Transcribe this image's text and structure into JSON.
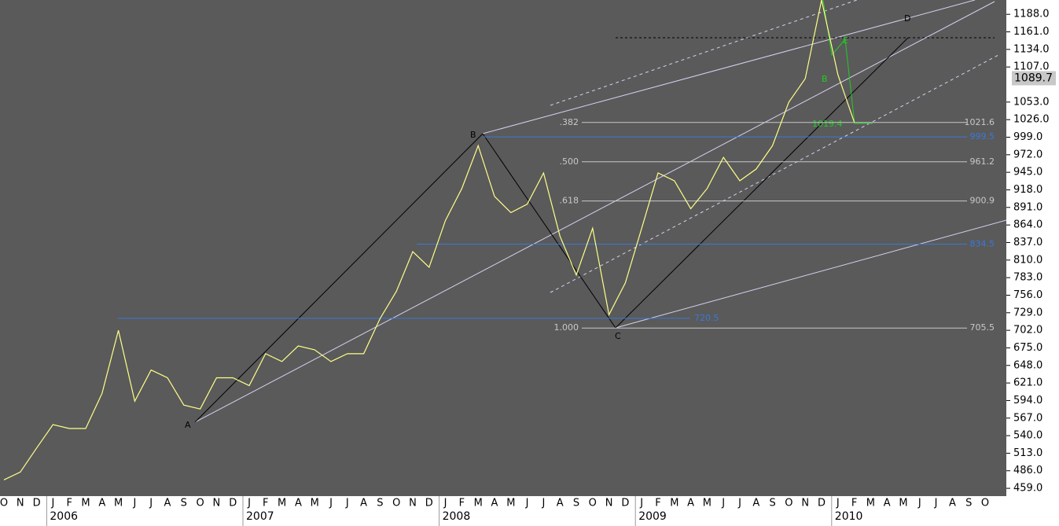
{
  "chart_data": {
    "type": "line",
    "categories": [
      "O",
      "N",
      "D",
      "J",
      "F",
      "M",
      "A",
      "M",
      "J",
      "J",
      "A",
      "S",
      "O",
      "N",
      "D",
      "J",
      "F",
      "M",
      "A",
      "M",
      "J",
      "J",
      "A",
      "S",
      "O",
      "N",
      "D",
      "J",
      "F",
      "M",
      "A",
      "M",
      "J",
      "J",
      "A",
      "S",
      "O",
      "N",
      "D",
      "J",
      "F",
      "M",
      "A",
      "M",
      "J",
      "J",
      "A",
      "S",
      "O",
      "N",
      "D",
      "J",
      "F",
      "M",
      "A",
      "M",
      "J",
      "J",
      "A",
      "S",
      "O"
    ],
    "years": [
      "2006",
      "2007",
      "2008",
      "2009",
      "2010"
    ],
    "series": [
      {
        "color": "#ffff88",
        "values": [
          472,
          484,
          521,
          557,
          551,
          551,
          605,
          702,
          593,
          641,
          629,
          587,
          581,
          629,
          629,
          617,
          666,
          654,
          678,
          672,
          654,
          666,
          666,
          720,
          762,
          823,
          799,
          871,
          920,
          986,
          908,
          883,
          896,
          944,
          847,
          787,
          859,
          726,
          775,
          859,
          944,
          932,
          889,
          920,
          968,
          932,
          950,
          986,
          1053,
          1089,
          1210,
          1095,
          1022,
          null,
          null,
          null,
          null,
          null,
          null,
          null,
          null
        ]
      }
    ],
    "ylim": [
      447,
      1210
    ],
    "yticks": [
      {
        "value": 459,
        "label": "459.0"
      },
      {
        "value": 486,
        "label": "486.0"
      },
      {
        "value": 513,
        "label": "513.0"
      },
      {
        "value": 540,
        "label": "540.0"
      },
      {
        "value": 567,
        "label": "567.0"
      },
      {
        "value": 594,
        "label": "594.0"
      },
      {
        "value": 621,
        "label": "621.0"
      },
      {
        "value": 648,
        "label": "648.0"
      },
      {
        "value": 675,
        "label": "675.0"
      },
      {
        "value": 702,
        "label": "702.0"
      },
      {
        "value": 729,
        "label": "729.0"
      },
      {
        "value": 756,
        "label": "756.0"
      },
      {
        "value": 783,
        "label": "783.0"
      },
      {
        "value": 810,
        "label": "810.0"
      },
      {
        "value": 837,
        "label": "837.0"
      },
      {
        "value": 864,
        "label": "864.0"
      },
      {
        "value": 891,
        "label": "891.0"
      },
      {
        "value": 918,
        "label": "918.0"
      },
      {
        "value": 945,
        "label": "945.0"
      },
      {
        "value": 972,
        "label": "972.0"
      },
      {
        "value": 999,
        "label": "999.0"
      },
      {
        "value": 1026,
        "label": "1026.0"
      },
      {
        "value": 1053,
        "label": "1053.0"
      },
      {
        "value": 1107,
        "label": "1107.0"
      },
      {
        "value": 1134,
        "label": "1134.0"
      },
      {
        "value": 1161,
        "label": "1161.0"
      },
      {
        "value": 1188,
        "label": "1188.0"
      }
    ],
    "last_price": 1089.7,
    "fib_levels": [
      {
        "label": ".382",
        "value": 1021.6
      },
      {
        "label": ".500",
        "value": 961.2
      },
      {
        "label": ".618",
        "value": 900.9
      },
      {
        "label": "1.000",
        "value": 705.5
      }
    ],
    "fib_color": "#c8c8c8",
    "hlines": [
      999.5,
      834.5,
      720.5
    ],
    "hline_color": "#3a78d8",
    "annotations": [
      "A",
      "B",
      "C",
      "D",
      "1019.4",
      "B",
      "E"
    ]
  }
}
